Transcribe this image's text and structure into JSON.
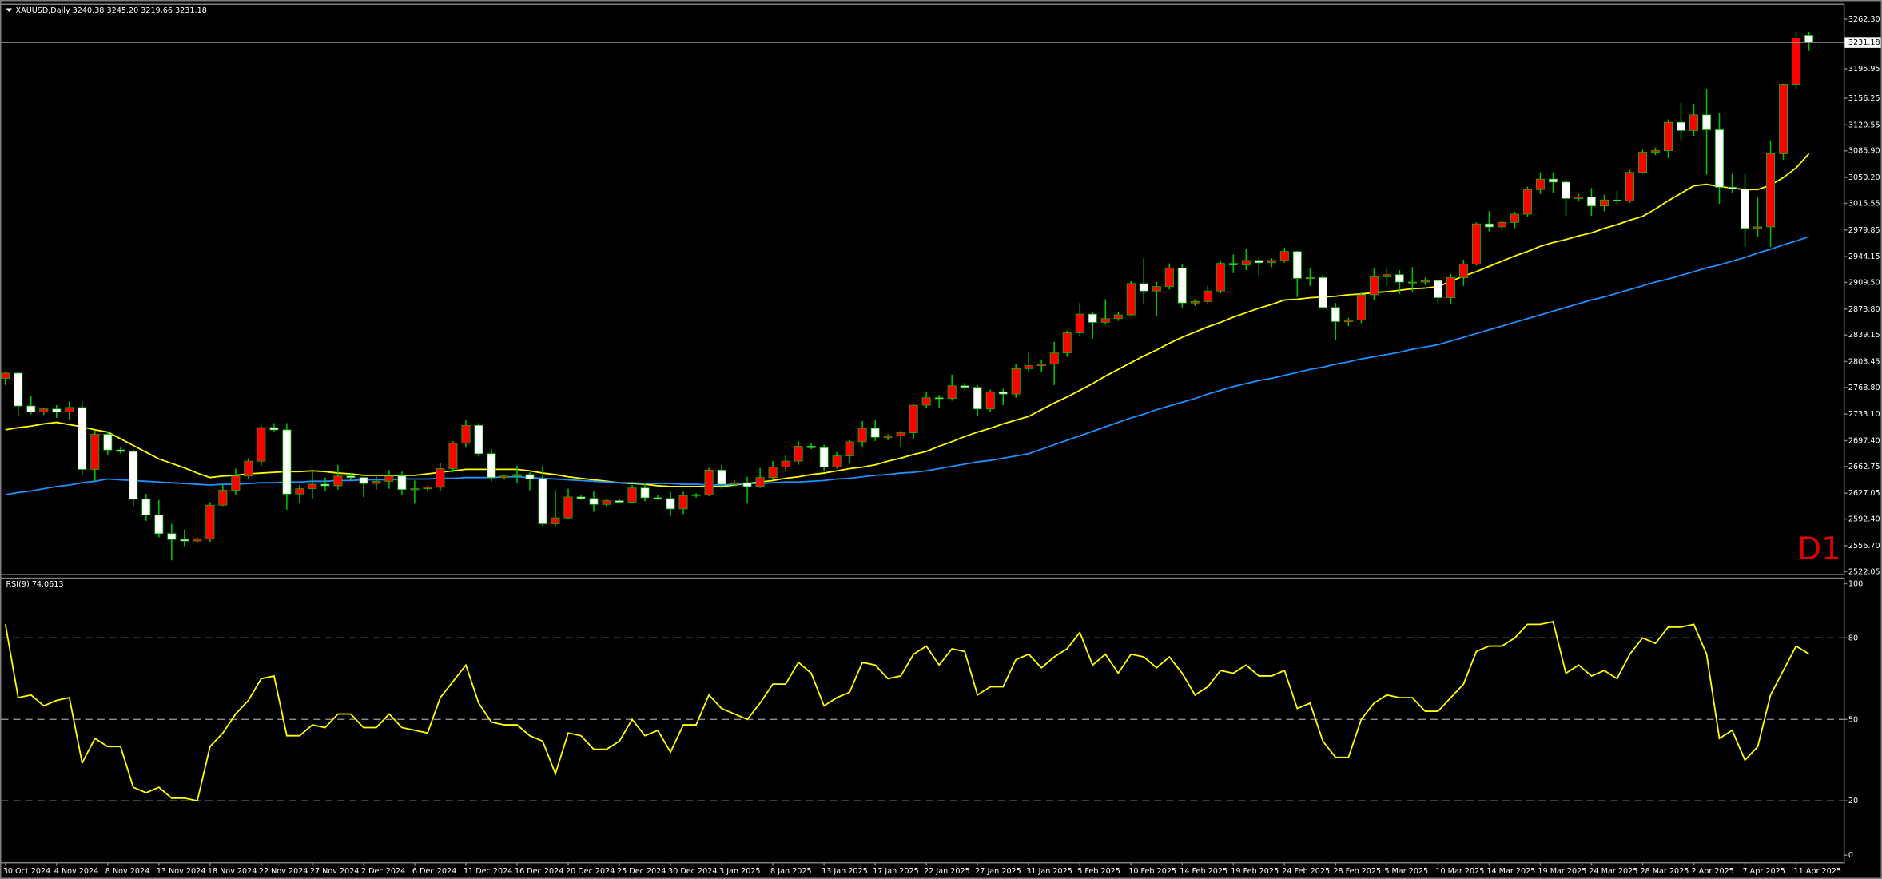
{
  "chart_data": [
    {
      "type": "candlestick",
      "title": "XAUUSD,Daily 3240.38 3245.20 3219.66 3231.18",
      "annotation": "D1",
      "categories": [
        "30 Oct 2024",
        null,
        null,
        null,
        "4 Nov 2024",
        null,
        null,
        null,
        "8 Nov 2024",
        null,
        null,
        null,
        "13 Nov 2024",
        null,
        null,
        null,
        "18 Nov 2024",
        null,
        null,
        null,
        "22 Nov 2024",
        null,
        null,
        null,
        "27 Nov 2024",
        null,
        null,
        null,
        "2 Dec 2024",
        null,
        null,
        null,
        "6 Dec 2024",
        null,
        null,
        null,
        "11 Dec 2024",
        null,
        null,
        null,
        "16 Dec 2024",
        null,
        null,
        null,
        "20 Dec 2024",
        null,
        null,
        null,
        "25 Dec 2024",
        null,
        null,
        null,
        "30 Dec 2024",
        null,
        null,
        null,
        "3 Jan 2025",
        null,
        null,
        null,
        "8 Jan 2025",
        null,
        null,
        null,
        "13 Jan 2025",
        null,
        null,
        null,
        "17 Jan 2025",
        null,
        null,
        null,
        "22 Jan 2025",
        null,
        null,
        null,
        "27 Jan 2025",
        null,
        null,
        null,
        "31 Jan 2025",
        null,
        null,
        null,
        "5 Feb 2025",
        null,
        null,
        null,
        "10 Feb 2025",
        null,
        null,
        null,
        "14 Feb 2025",
        null,
        null,
        null,
        "19 Feb 2025",
        null,
        null,
        null,
        "24 Feb 2025",
        null,
        null,
        null,
        "28 Feb 2025",
        null,
        null,
        null,
        "5 Mar 2025",
        null,
        null,
        null,
        "10 Mar 2025",
        null,
        null,
        null,
        "14 Mar 2025",
        null,
        null,
        null,
        "19 Mar 2025",
        null,
        null,
        null,
        "24 Mar 2025",
        null,
        null,
        null,
        "28 Mar 2025",
        null,
        null,
        null,
        "2 Apr 2025",
        null,
        null,
        null,
        "7 Apr 2025",
        null,
        null,
        null,
        "11 Apr 2025",
        null
      ],
      "open": [
        2781,
        2788,
        2744,
        2736,
        2740,
        2736,
        2742,
        2659,
        2706,
        2685,
        2683,
        2619,
        2598,
        2573,
        2565,
        2563,
        2566,
        2611,
        2631,
        2650,
        2670,
        2715,
        2712,
        2626,
        2633,
        2639,
        2637,
        2650,
        2648,
        2640,
        2643,
        2650,
        2632,
        2633,
        2635,
        2660,
        2694,
        2718,
        2680,
        2648,
        2650,
        2652,
        2646,
        2586,
        2594,
        2622,
        2620,
        2612,
        2617,
        2615,
        2634,
        2621,
        2620,
        2606,
        2624,
        2625,
        2658,
        2639,
        2641,
        2636,
        2648,
        2662,
        2670,
        2690,
        2688,
        2662,
        2677,
        2696,
        2714,
        2702,
        2704,
        2708,
        2745,
        2755,
        2754,
        2771,
        2769,
        2740,
        2763,
        2760,
        2794,
        2798,
        2800,
        2815,
        2842,
        2867,
        2856,
        2861,
        2866,
        2908,
        2898,
        2904,
        2929,
        2882,
        2884,
        2898,
        2935,
        2933,
        2939,
        2936,
        2939,
        2951,
        2915,
        2916,
        2876,
        2857,
        2859,
        2893,
        2917,
        2920,
        2910,
        2910,
        2912,
        2889,
        2916,
        2934,
        2988,
        2984,
        2990,
        3001,
        3034,
        3048,
        3044,
        3022,
        3024,
        3012,
        3020,
        3019,
        3057,
        3084,
        3086,
        3124,
        3113,
        3134,
        3114,
        3037,
        3035,
        2982,
        2984,
        3082,
        3175,
        3240.38
      ],
      "high": [
        2790,
        2790,
        2757,
        2741,
        2745,
        2750,
        2750,
        2711,
        2710,
        2689,
        2685,
        2626,
        2618,
        2586,
        2578,
        2568,
        2615,
        2639,
        2660,
        2674,
        2717,
        2721,
        2721,
        2638,
        2656,
        2648,
        2665,
        2654,
        2649,
        2651,
        2658,
        2656,
        2644,
        2637,
        2668,
        2697,
        2726,
        2721,
        2686,
        2652,
        2664,
        2655,
        2664,
        2631,
        2633,
        2625,
        2630,
        2620,
        2620,
        2638,
        2640,
        2625,
        2629,
        2629,
        2627,
        2661,
        2665,
        2644,
        2649,
        2661,
        2670,
        2678,
        2697,
        2694,
        2692,
        2682,
        2698,
        2724,
        2725,
        2706,
        2711,
        2746,
        2763,
        2759,
        2786,
        2775,
        2772,
        2766,
        2767,
        2800,
        2817,
        2805,
        2830,
        2845,
        2882,
        2870,
        2887,
        2870,
        2911,
        2942,
        2910,
        2935,
        2934,
        2887,
        2905,
        2938,
        2947,
        2955,
        2942,
        2942,
        2956,
        2952,
        2928,
        2920,
        2882,
        2862,
        2897,
        2928,
        2930,
        2926,
        2930,
        2916,
        2913,
        2921,
        2940,
        2990,
        3005,
        2992,
        3004,
        3038,
        3057,
        3057,
        3047,
        3028,
        3036,
        3027,
        3032,
        3060,
        3087,
        3090,
        3128,
        3150,
        3149,
        3168,
        3136,
        3055,
        3055,
        3023,
        3099,
        3176,
        3245,
        3245.2
      ],
      "low": [
        2772,
        2730,
        2733,
        2732,
        2728,
        2725,
        2652,
        2643,
        2678,
        2680,
        2610,
        2590,
        2568,
        2537,
        2556,
        2560,
        2562,
        2610,
        2625,
        2646,
        2664,
        2710,
        2605,
        2614,
        2620,
        2630,
        2632,
        2645,
        2622,
        2632,
        2633,
        2624,
        2613,
        2630,
        2630,
        2655,
        2688,
        2676,
        2643,
        2645,
        2641,
        2631,
        2583,
        2583,
        2593,
        2618,
        2602,
        2608,
        2613,
        2614,
        2616,
        2618,
        2596,
        2599,
        2621,
        2623,
        2633,
        2636,
        2614,
        2634,
        2645,
        2656,
        2665,
        2686,
        2656,
        2660,
        2668,
        2689,
        2697,
        2698,
        2689,
        2700,
        2741,
        2742,
        2751,
        2766,
        2730,
        2736,
        2745,
        2755,
        2790,
        2790,
        2772,
        2810,
        2838,
        2834,
        2853,
        2858,
        2864,
        2880,
        2864,
        2900,
        2876,
        2878,
        2881,
        2895,
        2922,
        2926,
        2919,
        2930,
        2936,
        2890,
        2905,
        2873,
        2832,
        2851,
        2855,
        2886,
        2905,
        2894,
        2896,
        2906,
        2880,
        2880,
        2905,
        2932,
        2978,
        2980,
        2982,
        2998,
        3028,
        3030,
        2999,
        3018,
        2999,
        3005,
        3013,
        3016,
        3055,
        3080,
        3076,
        3100,
        3106,
        3054,
        3015,
        3030,
        2957,
        2970,
        2957,
        3074,
        3168,
        3219.66
      ],
      "close": [
        2788,
        2744,
        2736,
        2740,
        2736,
        2742,
        2659,
        2706,
        2685,
        2683,
        2619,
        2598,
        2573,
        2565,
        2563,
        2566,
        2611,
        2631,
        2650,
        2670,
        2715,
        2712,
        2626,
        2633,
        2639,
        2637,
        2650,
        2648,
        2640,
        2643,
        2650,
        2632,
        2633,
        2635,
        2660,
        2694,
        2718,
        2680,
        2648,
        2650,
        2652,
        2646,
        2586,
        2594,
        2622,
        2620,
        2612,
        2617,
        2615,
        2634,
        2621,
        2620,
        2606,
        2624,
        2625,
        2658,
        2639,
        2641,
        2636,
        2648,
        2662,
        2670,
        2690,
        2688,
        2662,
        2677,
        2696,
        2714,
        2702,
        2704,
        2708,
        2745,
        2755,
        2754,
        2771,
        2769,
        2740,
        2763,
        2760,
        2794,
        2798,
        2800,
        2815,
        2842,
        2867,
        2856,
        2861,
        2866,
        2908,
        2898,
        2904,
        2929,
        2882,
        2884,
        2898,
        2935,
        2933,
        2939,
        2936,
        2939,
        2951,
        2915,
        2916,
        2876,
        2857,
        2859,
        2893,
        2917,
        2920,
        2910,
        2910,
        2912,
        2889,
        2916,
        2934,
        2988,
        2984,
        2990,
        3001,
        3034,
        3048,
        3044,
        3022,
        3024,
        3012,
        3020,
        3019,
        3057,
        3084,
        3086,
        3124,
        3113,
        3134,
        3114,
        3037,
        3035,
        2982,
        2984,
        3082,
        3175,
        3237,
        3231.18
      ],
      "up_color": "#ff0000",
      "down_color": "#ffffff",
      "wick_color": "#00c800",
      "overlays": [
        {
          "color": "#ffff00",
          "values": [
            2712,
            2715,
            2717,
            2720,
            2722,
            2719,
            2716,
            2712,
            2709,
            2700,
            2691,
            2682,
            2673,
            2667,
            2661,
            2654,
            2648,
            2650,
            2651,
            2653,
            2654,
            2655,
            2656,
            2656,
            2657,
            2656,
            2654,
            2653,
            2651,
            2651,
            2651,
            2651,
            2651,
            2653,
            2655,
            2657,
            2659,
            2659,
            2659,
            2659,
            2659,
            2657,
            2654,
            2652,
            2649,
            2647,
            2645,
            2643,
            2641,
            2640,
            2639,
            2637,
            2636,
            2636,
            2636,
            2636,
            2636,
            2638,
            2640,
            2642,
            2644,
            2647,
            2649,
            2652,
            2654,
            2657,
            2660,
            2662,
            2665,
            2670,
            2674,
            2679,
            2683,
            2690,
            2696,
            2703,
            2709,
            2714,
            2720,
            2725,
            2730,
            2739,
            2748,
            2756,
            2765,
            2774,
            2784,
            2793,
            2802,
            2811,
            2819,
            2828,
            2836,
            2843,
            2850,
            2856,
            2863,
            2869,
            2875,
            2880,
            2886,
            2887,
            2889,
            2890,
            2891,
            2893,
            2894,
            2896,
            2897,
            2899,
            2901,
            2902,
            2904,
            2911,
            2918,
            2924,
            2931,
            2938,
            2945,
            2951,
            2958,
            2963,
            2967,
            2972,
            2976,
            2982,
            2987,
            2993,
            2998,
            3008,
            3019,
            3029,
            3039,
            3041,
            3038,
            3036,
            3034,
            3034,
            3040,
            3050,
            3063,
            3082
          ]
        },
        {
          "color": "#1e90ff",
          "values": [
            2625,
            2628,
            2630,
            2633,
            2636,
            2638,
            2641,
            2643,
            2646,
            2645,
            2644,
            2643,
            2642,
            2641,
            2640,
            2639,
            2638,
            2639,
            2639,
            2640,
            2641,
            2641,
            2642,
            2642,
            2643,
            2643,
            2644,
            2644,
            2645,
            2645,
            2645,
            2646,
            2646,
            2646,
            2647,
            2647,
            2648,
            2648,
            2648,
            2649,
            2649,
            2648,
            2647,
            2646,
            2645,
            2644,
            2643,
            2642,
            2641,
            2641,
            2640,
            2640,
            2640,
            2639,
            2639,
            2638,
            2638,
            2639,
            2640,
            2640,
            2641,
            2642,
            2642,
            2643,
            2644,
            2646,
            2647,
            2649,
            2651,
            2652,
            2654,
            2655,
            2657,
            2660,
            2663,
            2666,
            2669,
            2671,
            2674,
            2677,
            2680,
            2686,
            2692,
            2698,
            2704,
            2710,
            2716,
            2722,
            2728,
            2733,
            2739,
            2744,
            2749,
            2754,
            2760,
            2765,
            2770,
            2774,
            2778,
            2781,
            2785,
            2789,
            2793,
            2796,
            2800,
            2803,
            2807,
            2810,
            2813,
            2816,
            2820,
            2823,
            2826,
            2831,
            2836,
            2841,
            2846,
            2851,
            2856,
            2861,
            2866,
            2871,
            2876,
            2881,
            2886,
            2890,
            2895,
            2900,
            2905,
            2910,
            2914,
            2919,
            2924,
            2929,
            2933,
            2938,
            2943,
            2949,
            2954,
            2960,
            2965,
            2971
          ]
        }
      ],
      "last_price": 3231.18,
      "ylim": [
        2518.8,
        3281.6
      ],
      "yticks": [
        {
          "value": 3262.3,
          "label": "3262.30"
        },
        3195.95,
        3156.25,
        3120.55,
        {
          "value": 3085.9,
          "label": "3085.90"
        },
        {
          "value": 3050.2,
          "label": "3050.20"
        },
        3015.55,
        2979.85,
        2944.15,
        {
          "value": 2909.5,
          "label": "2909.50"
        },
        {
          "value": 2873.8,
          "label": "2873.80"
        },
        2839.15,
        2803.45,
        {
          "value": 2768.8,
          "label": "2768.80"
        },
        {
          "value": 2733.1,
          "label": "2733.10"
        },
        {
          "value": 2697.4,
          "label": "2697.40"
        },
        2662.75,
        2627.05,
        {
          "value": 2592.4,
          "label": "2592.40"
        },
        {
          "value": 2556.7,
          "label": "2556.70"
        },
        2522.05
      ]
    },
    {
      "type": "line",
      "title": "RSI(9) 74.0613",
      "color": "#ffff00",
      "values": [
        85,
        58,
        59,
        55,
        57,
        58,
        34,
        43,
        40,
        40,
        25,
        23,
        25,
        21,
        21,
        20,
        40,
        45,
        52,
        57,
        65,
        66,
        44,
        44,
        48,
        47,
        52,
        52,
        47,
        47,
        52,
        47,
        46,
        45,
        58,
        64,
        70,
        56,
        49,
        48,
        48,
        44,
        42,
        30,
        45,
        44,
        39,
        39,
        42,
        50,
        44,
        46,
        38,
        48,
        48,
        59,
        54,
        52,
        50,
        56,
        63,
        63,
        71,
        67,
        55,
        58,
        60,
        71,
        70,
        65,
        66,
        74,
        77,
        70,
        76,
        75,
        59,
        62,
        62,
        72,
        74,
        69,
        73,
        76,
        82,
        70,
        74,
        67,
        74,
        73,
        69,
        73,
        67,
        59,
        62,
        68,
        67,
        70,
        66,
        66,
        68,
        54,
        56,
        42,
        36,
        36,
        50,
        56,
        59,
        58,
        58,
        53,
        53,
        58,
        63,
        75,
        77,
        77,
        80,
        85,
        85,
        86,
        67,
        70,
        66,
        68,
        65,
        74,
        80,
        78,
        84,
        84,
        85,
        74,
        43,
        46,
        35,
        40,
        59,
        68,
        77,
        74.0613
      ],
      "ylim": [
        -2.6,
        101.8
      ],
      "yticks": [
        0,
        20,
        50,
        80,
        100
      ],
      "levels": [
        20,
        50,
        80
      ]
    }
  ]
}
